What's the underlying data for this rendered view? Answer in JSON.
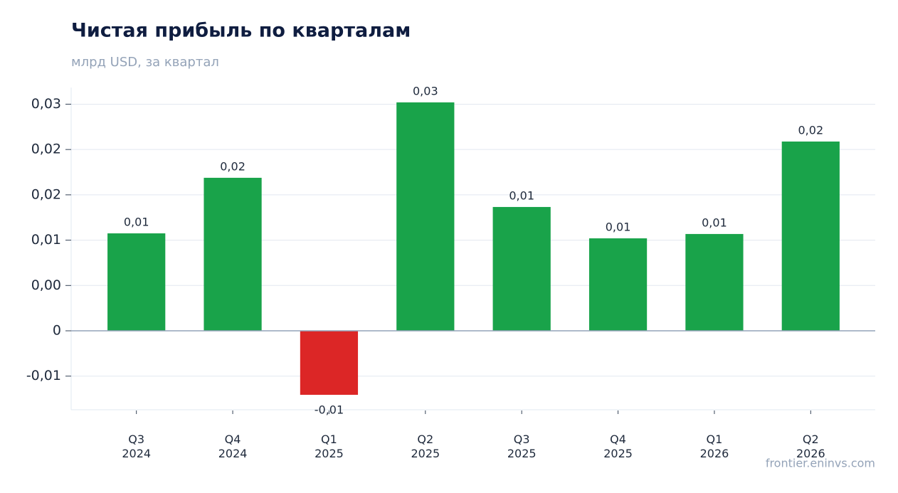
{
  "chart_data": {
    "type": "bar",
    "title": "Чистая прибыль по кварталам",
    "subtitle": "млрд USD, за квартал",
    "source": "frontier.eninvs.com",
    "categories": [
      "Q3\n2024",
      "Q4\n2024",
      "Q1\n2025",
      "Q2\n2025",
      "Q3\n2025",
      "Q4\n2025",
      "Q1\n2026",
      "Q2\n2026"
    ],
    "values": [
      0.01075,
      0.01688,
      -0.00706,
      0.0252,
      0.01366,
      0.0102,
      0.01068,
      0.02088
    ],
    "value_labels": [
      "0,01",
      "0,02",
      "-0,01",
      "0,03",
      "0,01",
      "0,01",
      "0,01",
      "0,02"
    ],
    "positive_color": "#19a34a",
    "negative_color": "#dc2626",
    "ylim": [
      -0.00871,
      0.02684
    ],
    "yticks": [
      {
        "value": -0.005,
        "label": "-0,01"
      },
      0,
      {
        "value": 0.005,
        "label": "0,00"
      },
      {
        "value": 0.01,
        "label": "0,01"
      },
      {
        "value": 0.015,
        "label": "0,02"
      },
      {
        "value": 0.02,
        "label": "0,02"
      },
      {
        "value": 0.025,
        "label": "0,03"
      }
    ],
    "grid": true
  }
}
